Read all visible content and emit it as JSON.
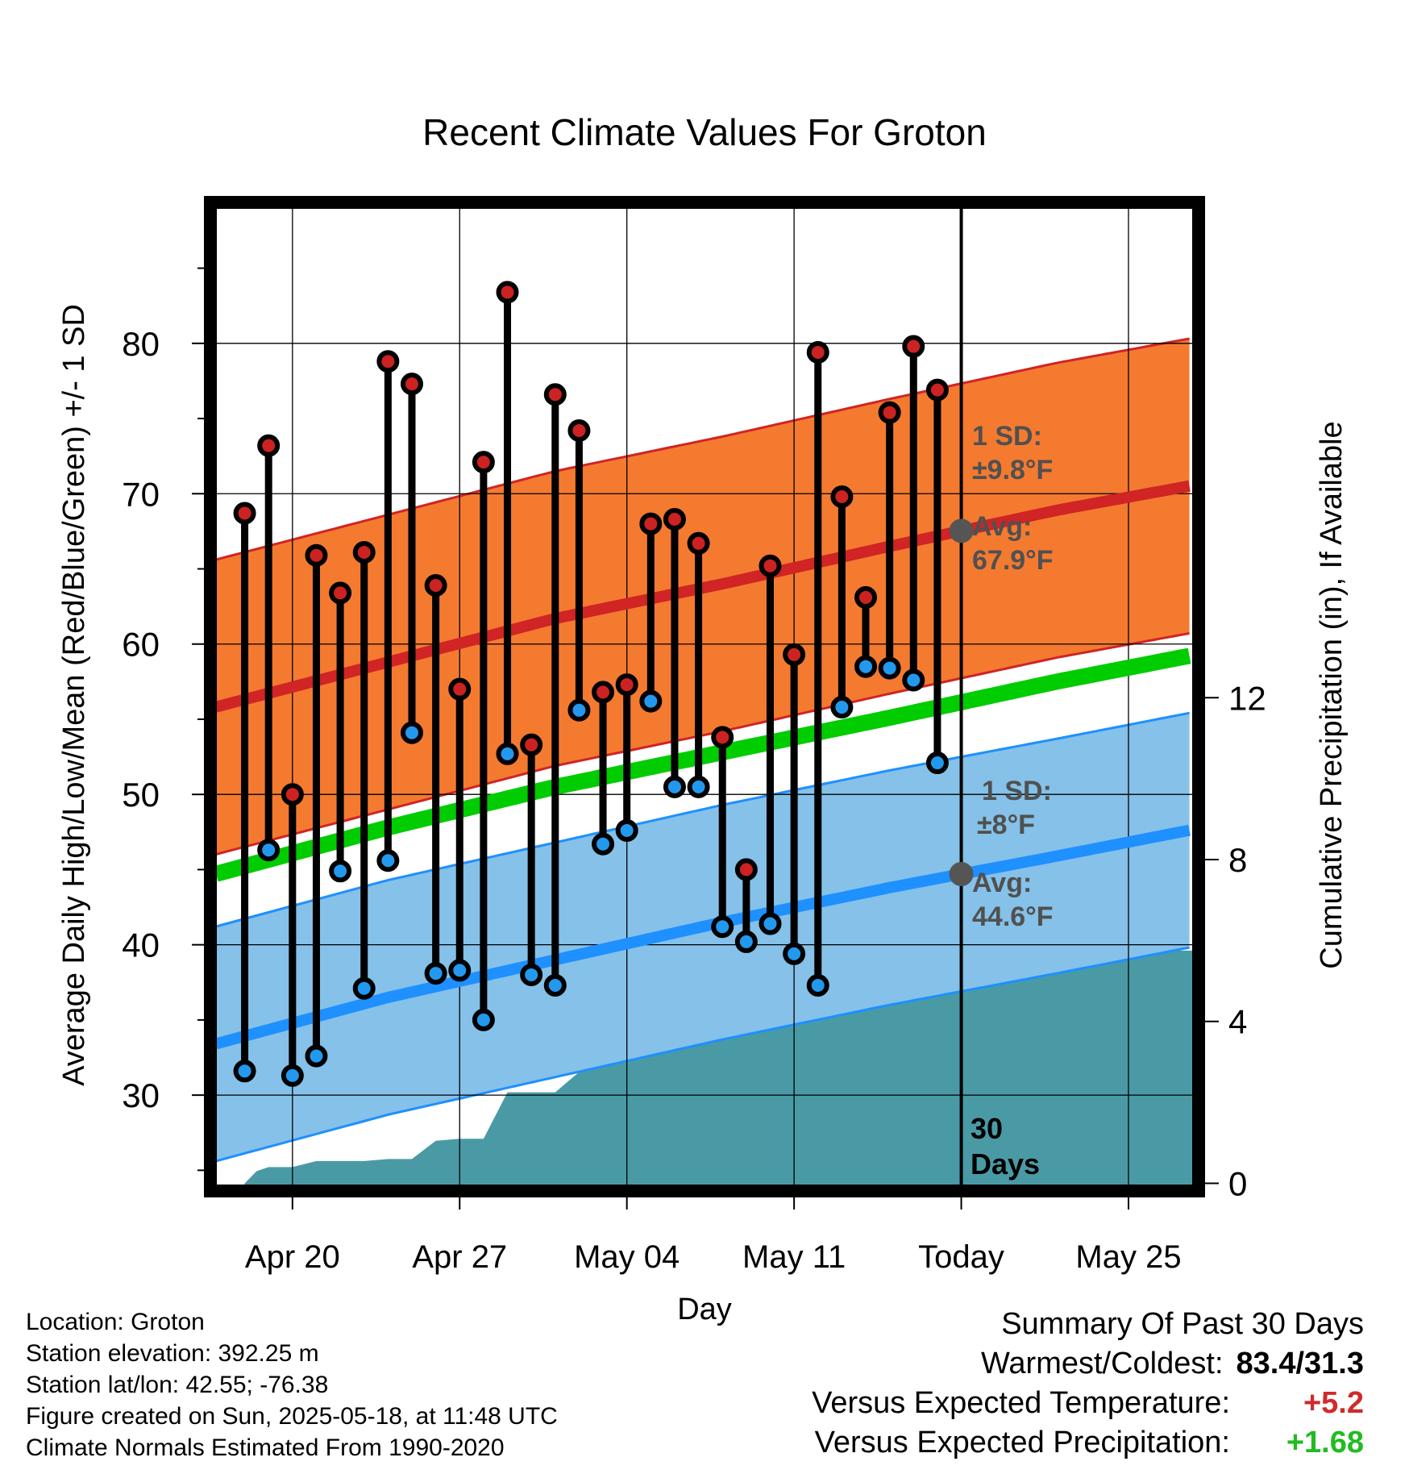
{
  "title": "Recent Climate Values For Groton",
  "chart_data": {
    "type": "line",
    "title": "Recent Climate Values For Groton",
    "xlabel": "Day",
    "ylabel": "Average Daily High/Low/Mean (Red/Blue/Green) +/- 1 SD",
    "y2label": "Cumulative Precipitation (in), If Available",
    "xticks": [
      "Apr 20",
      "Apr 27",
      "May 04",
      "May 11",
      "Today",
      "May 25"
    ],
    "xtick_days": [
      20,
      27,
      34,
      41,
      48,
      55
    ],
    "xlim_days": [
      16.8,
      57.7
    ],
    "ylim": [
      24,
      89
    ],
    "yticks": [
      30,
      40,
      50,
      60,
      70,
      80
    ],
    "y2lim": [
      -0.05,
      24.1
    ],
    "y2ticks": [
      0,
      4,
      8,
      12
    ],
    "grid": true,
    "today_day": 48,
    "daily_days": [
      18,
      19,
      20,
      21,
      22,
      23,
      24,
      25,
      26,
      27,
      28,
      29,
      30,
      31,
      32,
      33,
      34,
      35,
      36,
      37,
      38,
      39,
      40,
      41,
      42,
      43,
      44,
      45,
      46,
      47
    ],
    "daily_high": [
      68.7,
      73.2,
      50.0,
      65.9,
      63.4,
      66.1,
      78.8,
      77.3,
      63.9,
      57.0,
      72.1,
      83.4,
      53.3,
      76.6,
      74.2,
      56.8,
      57.3,
      68.0,
      68.3,
      66.7,
      53.8,
      45.0,
      65.2,
      59.3,
      79.4,
      69.8,
      63.1,
      75.4,
      79.8,
      76.9
    ],
    "daily_low": [
      31.6,
      46.3,
      31.3,
      32.6,
      44.9,
      37.1,
      45.6,
      54.1,
      38.1,
      38.3,
      35.0,
      52.7,
      38.0,
      37.3,
      55.6,
      46.7,
      47.6,
      56.2,
      50.5,
      50.5,
      41.2,
      40.2,
      41.4,
      39.4,
      37.3,
      55.8,
      58.5,
      58.4,
      57.6,
      52.1
    ],
    "normal_high": {
      "name": "Avg: 67.9°F",
      "sd_label": "1 SD: ±9.8°F",
      "days": [
        17,
        24,
        31,
        38,
        45,
        52,
        57.5
      ],
      "values": [
        55.9,
        58.8,
        61.7,
        64.0,
        66.5,
        68.9,
        70.5
      ],
      "sd": 9.8
    },
    "normal_low": {
      "name": "Avg: 44.6°F",
      "sd_label": "1 SD: ±8°F",
      "days": [
        17,
        24,
        31,
        38,
        45,
        52,
        57.5
      ],
      "values": [
        33.5,
        36.5,
        39.0,
        41.5,
        43.8,
        45.9,
        47.6
      ],
      "sd": 7.8
    },
    "normal_mean": {
      "days": [
        17,
        24,
        31,
        38,
        45,
        52,
        57.5
      ],
      "values": [
        44.8,
        47.8,
        50.5,
        52.8,
        55.1,
        57.5,
        59.2
      ]
    },
    "precip": {
      "days": [
        18,
        18.5,
        19,
        20,
        21,
        22,
        23,
        24,
        25,
        26,
        27,
        28,
        29,
        30,
        31,
        32,
        33,
        34,
        35,
        36,
        37,
        38,
        39,
        40,
        41,
        42,
        43,
        44,
        45,
        46,
        47,
        48,
        57.7
      ],
      "values": [
        0,
        0.3,
        0.4,
        0.4,
        0.55,
        0.55,
        0.55,
        0.6,
        0.6,
        1.05,
        1.1,
        1.1,
        2.25,
        2.25,
        2.25,
        2.75,
        3.05,
        3.3,
        3.6,
        4.9,
        5.0,
        5.0,
        5.1,
        5.15,
        5.15,
        5.25,
        5.35,
        5.35,
        5.35,
        5.55,
        5.75,
        5.75,
        5.75
      ]
    }
  },
  "labels": {
    "high_sd": [
      "1 SD:",
      "±9.8°F"
    ],
    "high_avg": [
      "Avg:",
      "67.9°F"
    ],
    "low_sd": [
      "1 SD:",
      "±8°F"
    ],
    "low_avg": [
      "Avg:",
      "44.6°F"
    ],
    "days_window": [
      "30",
      "Days"
    ]
  },
  "info": {
    "location": "Location: Groton",
    "elevation": "Station elevation: 392.25 m",
    "latlon": "Station lat/lon: 42.55; -76.38",
    "created": "Figure created on Sun, 2025-05-18, at 11:48 UTC",
    "normals": "Climate Normals Estimated From 1990-2020"
  },
  "summary": {
    "heading": "Summary Of Past 30 Days",
    "warm_cold_label": "Warmest/Coldest:",
    "warm_cold_value": "83.4/31.3",
    "temp_label": "Versus Expected Temperature:",
    "temp_value": "+5.2",
    "precip_label": "Versus Expected Precipitation:",
    "precip_value": "+1.68"
  },
  "colors": {
    "high_band": "#f47a30",
    "high_line": "#d02425",
    "low_band": "#85c1e8",
    "low_line": "#1e90ff",
    "mean_line": "#00cc00",
    "precip_fill": "#4a9aa5",
    "high_marker": "#cc2222",
    "low_marker": "#2299ee",
    "avg_dot": "#555555",
    "label_text": "#505050"
  }
}
